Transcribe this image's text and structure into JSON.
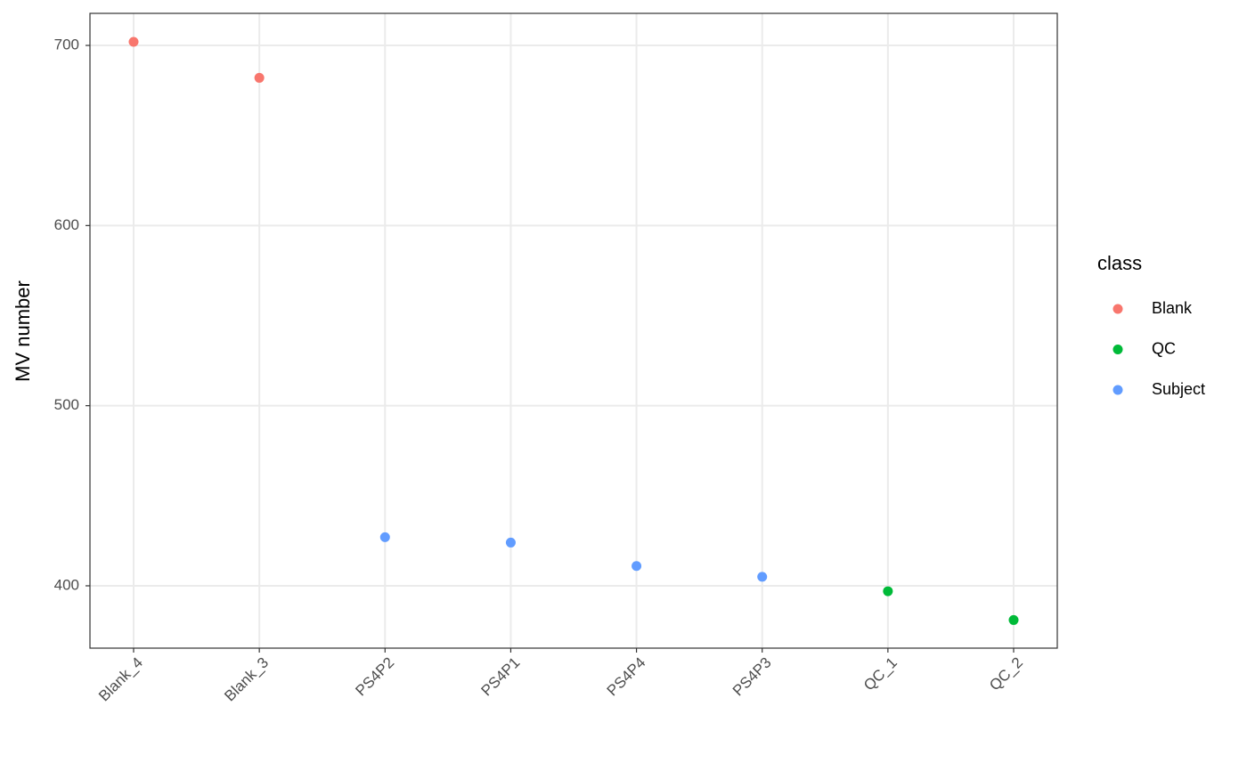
{
  "chart_data": {
    "type": "scatter",
    "y_label": "MV number",
    "legend_title": "class",
    "categories": [
      "Blank_4",
      "Blank_3",
      "PS4P2",
      "PS4P1",
      "PS4P4",
      "PS4P3",
      "QC_1",
      "QC_2"
    ],
    "series": [
      {
        "name": "Blank",
        "color": "#f8766d",
        "values": [
          702,
          682,
          null,
          null,
          null,
          null,
          null,
          null
        ]
      },
      {
        "name": "QC",
        "color": "#00ba38",
        "values": [
          null,
          null,
          null,
          null,
          null,
          null,
          397,
          381
        ]
      },
      {
        "name": "Subject",
        "color": "#619cff",
        "values": [
          null,
          null,
          427,
          424,
          411,
          405,
          null,
          null
        ]
      }
    ],
    "ylim": [
      365.4,
      717.8
    ],
    "yticks": [
      400,
      500,
      600,
      700
    ],
    "grid": true,
    "legend": "right"
  }
}
